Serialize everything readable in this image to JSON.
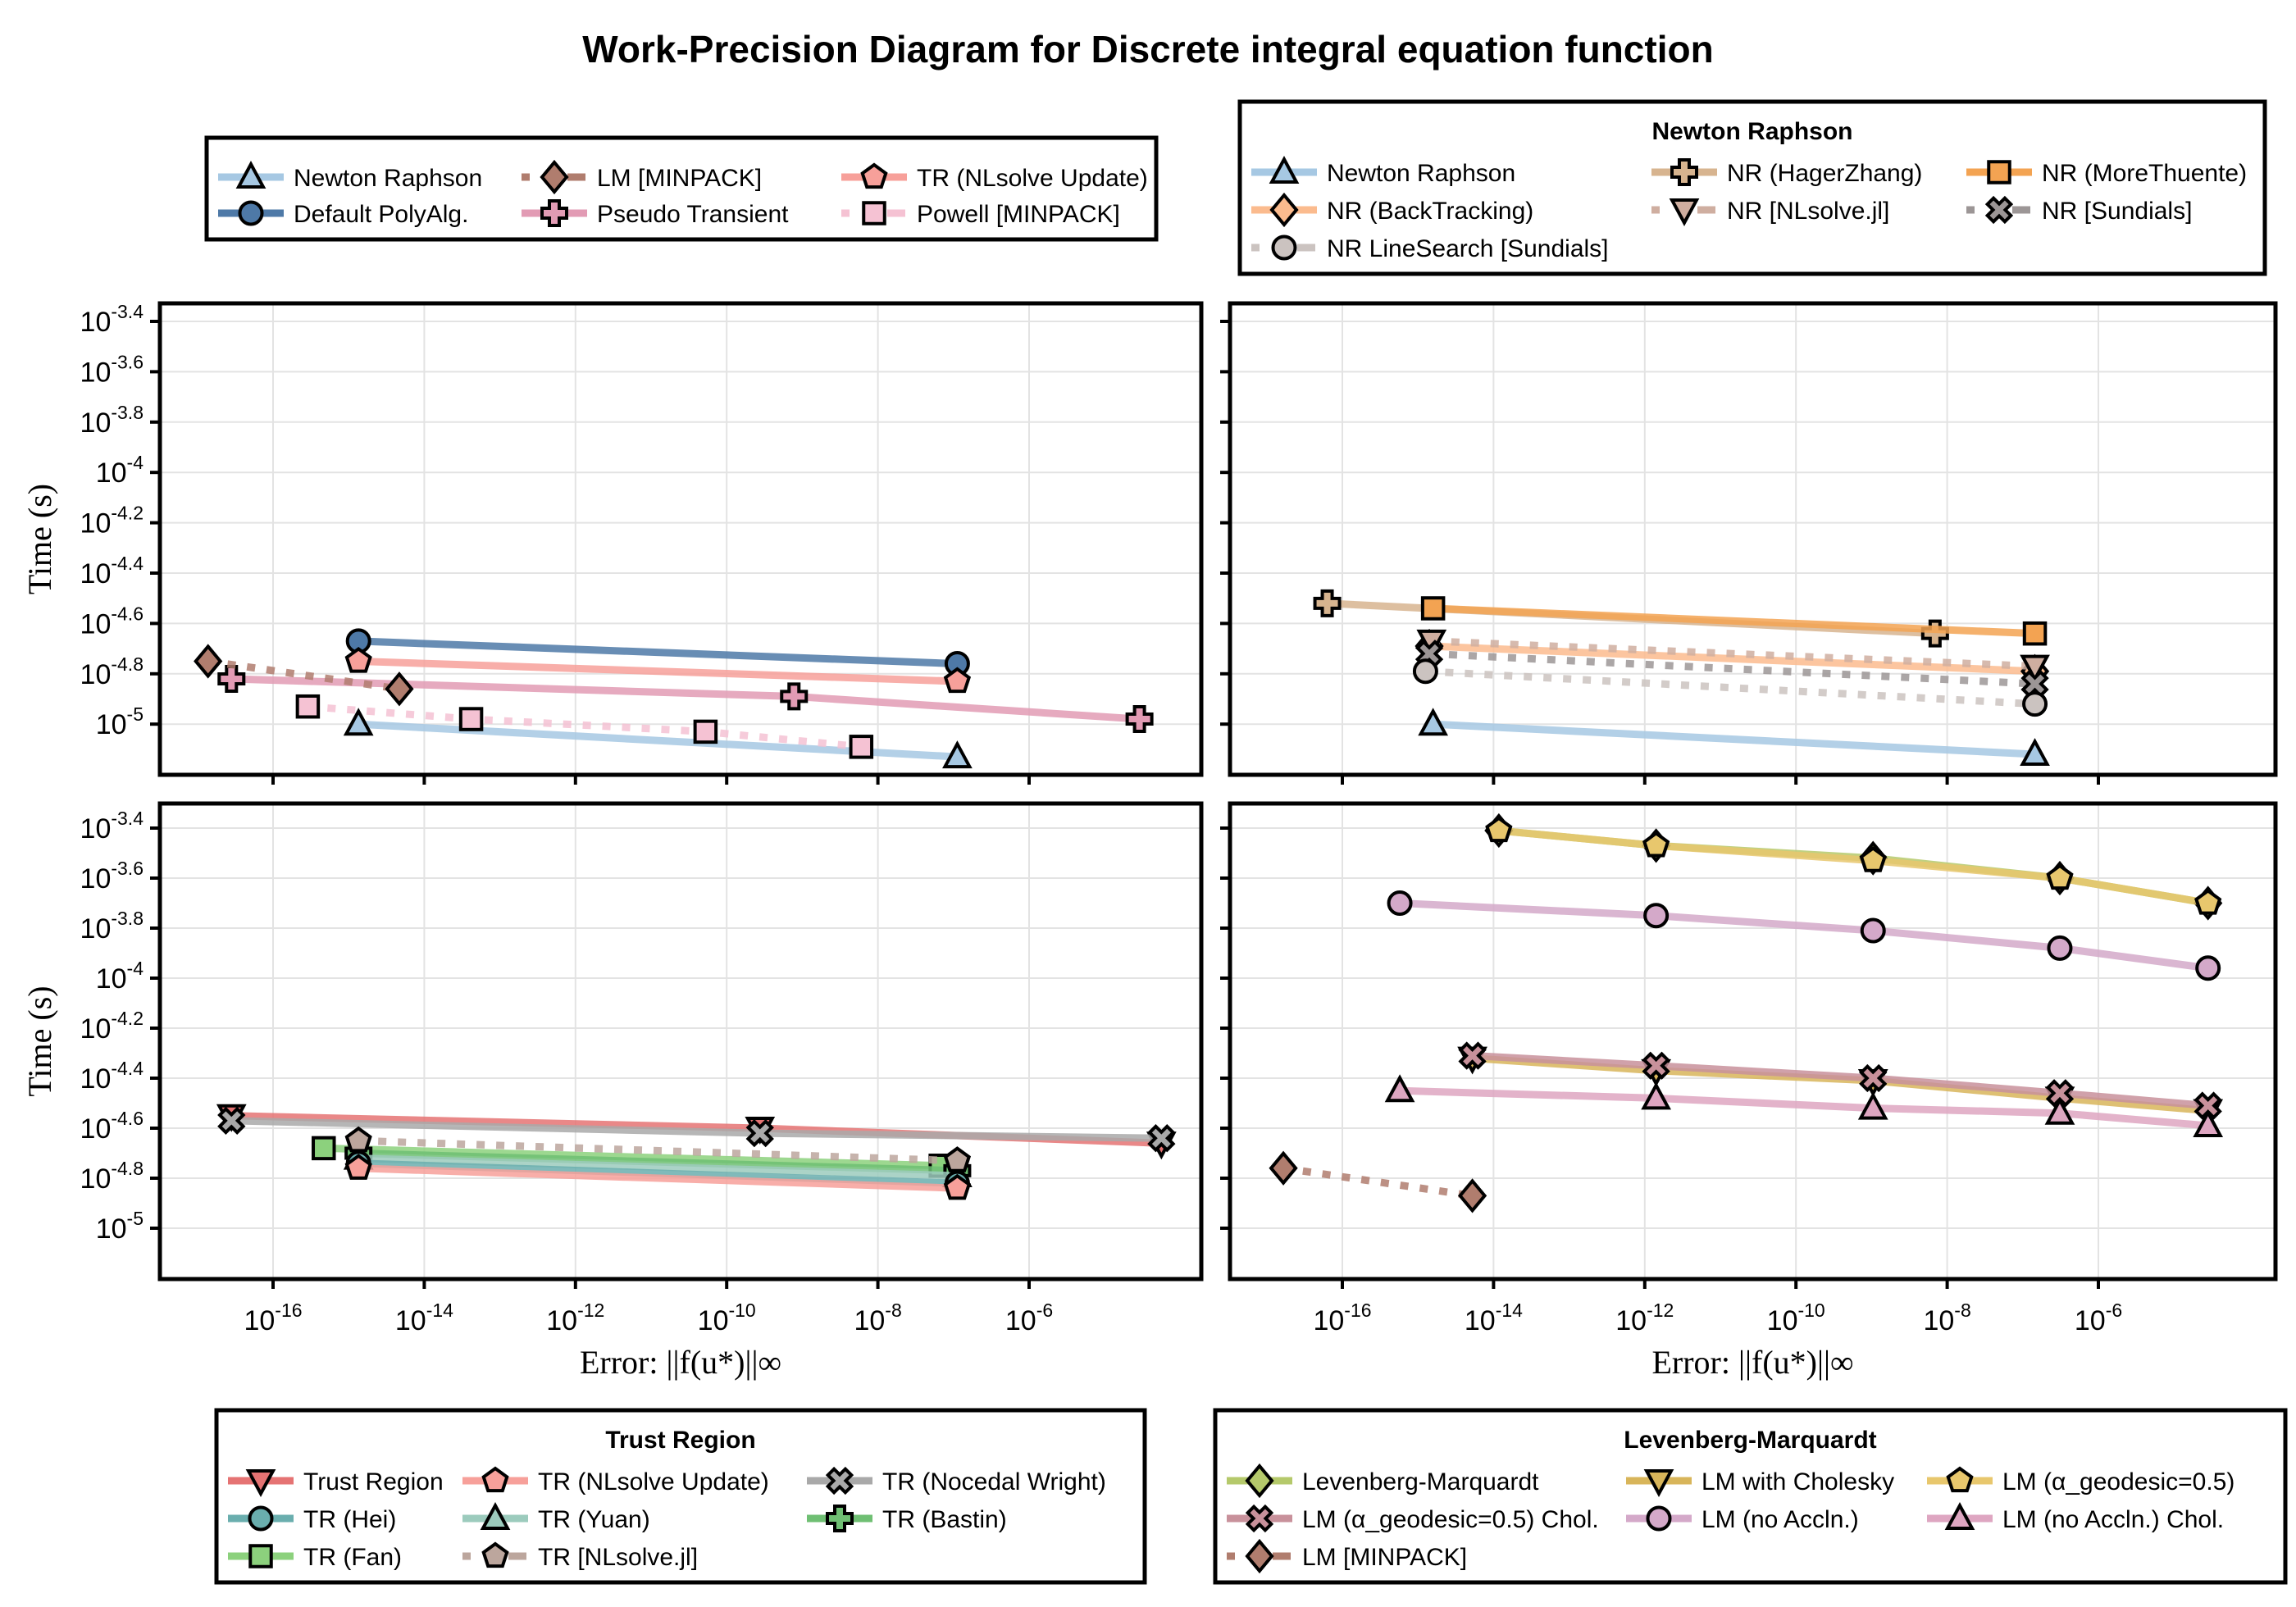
{
  "figure": {
    "title": "Work-Precision Diagram for Discrete integral equation function"
  },
  "legends": {
    "main": {
      "title": "",
      "entries": [
        {
          "label": "Newton Raphson",
          "series": "newton_raphson"
        },
        {
          "label": "Default PolyAlg.",
          "series": "default_polyalg"
        },
        {
          "label": "LM [MINPACK]",
          "series": "lm_minpack"
        },
        {
          "label": "Pseudo Transient",
          "series": "pseudo_transient"
        },
        {
          "label": "TR (NLsolve Update)",
          "series": "tr_nlsolve_update"
        },
        {
          "label": "Powell [MINPACK]",
          "series": "powell_minpack"
        }
      ]
    },
    "newton": {
      "title": "Newton Raphson",
      "entries": [
        {
          "label": "Newton Raphson",
          "series": "nr"
        },
        {
          "label": "NR (HagerZhang)",
          "series": "nr_hagerzhang"
        },
        {
          "label": "NR (MoreThuente)",
          "series": "nr_morethuente"
        },
        {
          "label": "NR (BackTracking)",
          "series": "nr_backtracking"
        },
        {
          "label": "NR [NLsolve.jl]",
          "series": "nr_nlsolve"
        },
        {
          "label": "NR [Sundials]",
          "series": "nr_sundials"
        },
        {
          "label": "NR LineSearch [Sundials]",
          "series": "nr_linesearch_sundials"
        }
      ]
    },
    "trust": {
      "title": "Trust Region",
      "entries": [
        {
          "label": "Trust Region",
          "series": "trust_region"
        },
        {
          "label": "TR (NLsolve Update)",
          "series": "tr_nlsolve_update2"
        },
        {
          "label": "TR (Nocedal Wright)",
          "series": "tr_nocedal"
        },
        {
          "label": "TR (Hei)",
          "series": "tr_hei"
        },
        {
          "label": "TR (Yuan)",
          "series": "tr_yuan"
        },
        {
          "label": "TR (Bastin)",
          "series": "tr_bastin"
        },
        {
          "label": "TR (Fan)",
          "series": "tr_fan"
        },
        {
          "label": "TR [NLsolve.jl]",
          "series": "tr_nlsolve_jl"
        }
      ]
    },
    "lm": {
      "title": "Levenberg-Marquardt",
      "entries": [
        {
          "label": "Levenberg-Marquardt",
          "series": "lm"
        },
        {
          "label": "LM with Cholesky",
          "series": "lm_chol"
        },
        {
          "label": "LM (α_geodesic=0.5)",
          "series": "lm_geo"
        },
        {
          "label": "LM (α_geodesic=0.5) Chol.",
          "series": "lm_geo_chol"
        },
        {
          "label": "LM (no Accln.)",
          "series": "lm_noacc"
        },
        {
          "label": "LM (no Accln.) Chol.",
          "series": "lm_noacc_chol"
        },
        {
          "label": "LM [MINPACK]",
          "series": "lm_minpack2"
        }
      ]
    }
  },
  "chart_data": [
    {
      "type": "line",
      "panel": "top-left",
      "title": "",
      "xlabel": "",
      "ylabel": "Time (s)",
      "xscale": "log10",
      "yscale": "log10",
      "xlim_log10": [
        -17.5,
        -2.5
      ],
      "ylim_log10": [
        -5.25,
        -3.33
      ],
      "xticks_log10": [
        -16,
        -14,
        -12,
        -10,
        -8,
        -6
      ],
      "yticks_log10": [
        -3.4,
        -3.6,
        -3.8,
        -4,
        -4.2,
        -4.4,
        -4.6,
        -4.8,
        -5
      ],
      "ytick_labels": [
        "10^-3.4",
        "10^-3.6",
        "10^-3.8",
        "10^-4",
        "10^-4.2",
        "10^-4.4",
        "10^-4.6",
        "10^-4.8",
        "10^-5"
      ],
      "show_xticklabels": false,
      "grid": true,
      "series": [
        {
          "id": "newton_raphson",
          "name": "Newton Raphson",
          "color": "#a6c8e3",
          "marker": "triangle",
          "dash": false,
          "log10_x": [
            -14.87,
            -6.95
          ],
          "log10_y": [
            -5.0,
            -5.13
          ]
        },
        {
          "id": "default_polyalg",
          "name": "Default PolyAlg.",
          "color": "#4e79a7",
          "marker": "circle",
          "dash": false,
          "log10_x": [
            -14.87,
            -6.95
          ],
          "log10_y": [
            -4.67,
            -4.76
          ]
        },
        {
          "id": "tr_nlsolve_update",
          "name": "TR (NLsolve Update)",
          "color": "#f7a09a",
          "marker": "pentagon",
          "dash": false,
          "log10_x": [
            -14.87,
            -6.95
          ],
          "log10_y": [
            -4.75,
            -4.83
          ]
        },
        {
          "id": "pseudo_transient",
          "name": "Pseudo Transient",
          "color": "#e29bb4",
          "marker": "cross",
          "dash": false,
          "log10_x": [
            -16.55,
            -9.11,
            -4.54
          ],
          "log10_y": [
            -4.82,
            -4.89,
            -4.98
          ]
        },
        {
          "id": "lm_minpack",
          "name": "LM [MINPACK]",
          "color": "#b07d6e",
          "marker": "diamond",
          "dash": true,
          "log10_x": [
            -16.86,
            -14.33
          ],
          "log10_y": [
            -4.75,
            -4.86
          ]
        },
        {
          "id": "powell_minpack",
          "name": "Powell [MINPACK]",
          "color": "#f5c2d3",
          "marker": "square",
          "dash": true,
          "log10_x": [
            -15.54,
            -13.38,
            -10.28,
            -8.22
          ],
          "log10_y": [
            -4.93,
            -4.98,
            -5.03,
            -5.09
          ]
        }
      ]
    },
    {
      "type": "line",
      "panel": "top-right",
      "title": "",
      "xlabel": "",
      "ylabel": "",
      "xscale": "log10",
      "yscale": "log10",
      "xlim_log10": [
        -17.5,
        -2.5
      ],
      "ylim_log10": [
        -5.25,
        -3.33
      ],
      "xticks_log10": [
        -16,
        -14,
        -12,
        -10,
        -8,
        -6
      ],
      "yticks_log10": [
        -3.4,
        -3.6,
        -3.8,
        -4,
        -4.2,
        -4.4,
        -4.6,
        -4.8,
        -5
      ],
      "show_xticklabels": false,
      "show_yticklabels": false,
      "grid": true,
      "series": [
        {
          "id": "nr",
          "name": "Newton Raphson",
          "color": "#a6c8e3",
          "marker": "triangle",
          "dash": false,
          "log10_x": [
            -14.8,
            -6.84
          ],
          "log10_y": [
            -5.0,
            -5.12
          ]
        },
        {
          "id": "nr_hagerzhang",
          "name": "NR (HagerZhang)",
          "color": "#d7b48f",
          "marker": "cross",
          "dash": false,
          "log10_x": [
            -16.2,
            -8.16
          ],
          "log10_y": [
            -4.52,
            -4.64
          ]
        },
        {
          "id": "nr_morethuente",
          "name": "NR (MoreThuente)",
          "color": "#f3a352",
          "marker": "square",
          "dash": false,
          "log10_x": [
            -14.8,
            -6.84
          ],
          "log10_y": [
            -4.54,
            -4.64
          ]
        },
        {
          "id": "nr_backtracking",
          "name": "NR (BackTracking)",
          "color": "#fbbb8e",
          "marker": "diamond",
          "dash": false,
          "log10_x": [
            -14.85,
            -6.84
          ],
          "log10_y": [
            -4.69,
            -4.79
          ]
        },
        {
          "id": "nr_nlsolve",
          "name": "NR [NLsolve.jl]",
          "color": "#cfaea0",
          "marker": "inverted-triangle",
          "dash": true,
          "log10_x": [
            -14.82,
            -6.84
          ],
          "log10_y": [
            -4.67,
            -4.77
          ]
        },
        {
          "id": "nr_sundials",
          "name": "NR [Sundials]",
          "color": "#9c9696",
          "marker": "x-cross",
          "dash": true,
          "log10_x": [
            -14.85,
            -6.84
          ],
          "log10_y": [
            -4.72,
            -4.84
          ]
        },
        {
          "id": "nr_linesearch_sundials",
          "name": "NR LineSearch [Sundials]",
          "color": "#cbc3c0",
          "marker": "circle",
          "dash": true,
          "log10_x": [
            -14.9,
            -6.84
          ],
          "log10_y": [
            -4.79,
            -4.92
          ]
        }
      ]
    },
    {
      "type": "line",
      "panel": "bottom-left",
      "title": "",
      "xlabel": "Error: ||f(u*)||∞",
      "ylabel": "Time (s)",
      "xscale": "log10",
      "yscale": "log10",
      "xlim_log10": [
        -17.5,
        -2.5
      ],
      "ylim_log10": [
        -5.3,
        -3.33
      ],
      "xticks_log10": [
        -16,
        -14,
        -12,
        -10,
        -8,
        -6
      ],
      "xtick_labels": [
        "10^-16",
        "10^-14",
        "10^-12",
        "10^-10",
        "10^-8",
        "10^-6"
      ],
      "yticks_log10": [
        -3.4,
        -3.6,
        -3.8,
        -4,
        -4.2,
        -4.4,
        -4.6,
        -4.8,
        -5
      ],
      "ytick_labels": [
        "10^-3.4",
        "10^-3.6",
        "10^-3.8",
        "10^-4",
        "10^-4.2",
        "10^-4.4",
        "10^-4.6",
        "10^-4.8",
        "10^-5"
      ],
      "grid": true,
      "series": [
        {
          "id": "trust_region",
          "name": "Trust Region",
          "color": "#e57373",
          "marker": "inverted-triangle",
          "dash": false,
          "log10_x": [
            -16.55,
            -9.56,
            -4.25
          ],
          "log10_y": [
            -4.55,
            -4.6,
            -4.66
          ]
        },
        {
          "id": "tr_nocedal",
          "name": "TR (Nocedal Wright)",
          "color": "#a9a9a9",
          "marker": "x-cross",
          "dash": false,
          "log10_x": [
            -16.55,
            -9.56,
            -4.25
          ],
          "log10_y": [
            -4.57,
            -4.62,
            -4.64
          ]
        },
        {
          "id": "tr_fan",
          "name": "TR (Fan)",
          "color": "#8cd17d",
          "marker": "square",
          "dash": false,
          "log10_x": [
            -15.33,
            -7.17
          ],
          "log10_y": [
            -4.68,
            -4.75
          ]
        },
        {
          "id": "tr_bastin",
          "name": "TR (Bastin)",
          "color": "#6fbf73",
          "marker": "cross",
          "dash": false,
          "log10_x": [
            -14.87,
            -6.95
          ],
          "log10_y": [
            -4.7,
            -4.77
          ]
        },
        {
          "id": "tr_yuan",
          "name": "TR (Yuan)",
          "color": "#9ccbbd",
          "marker": "triangle",
          "dash": false,
          "log10_x": [
            -14.87,
            -6.95
          ],
          "log10_y": [
            -4.72,
            -4.79
          ]
        },
        {
          "id": "tr_hei",
          "name": "TR (Hei)",
          "color": "#6aaeae",
          "marker": "circle",
          "dash": false,
          "log10_x": [
            -14.87,
            -6.95
          ],
          "log10_y": [
            -4.74,
            -4.82
          ]
        },
        {
          "id": "tr_nlsolve_update2",
          "name": "TR (NLsolve Update)",
          "color": "#f7a09a",
          "marker": "pentagon",
          "dash": false,
          "log10_x": [
            -14.87,
            -6.95
          ],
          "log10_y": [
            -4.76,
            -4.84
          ]
        },
        {
          "id": "tr_nlsolve_jl",
          "name": "TR [NLsolve.jl]",
          "color": "#bca69d",
          "marker": "pentagon",
          "dash": true,
          "log10_x": [
            -14.87,
            -6.95
          ],
          "log10_y": [
            -4.65,
            -4.73
          ]
        }
      ]
    },
    {
      "type": "line",
      "panel": "bottom-right",
      "title": "",
      "xlabel": "Error: ||f(u*)||∞",
      "ylabel": "",
      "xscale": "log10",
      "yscale": "log10",
      "xlim_log10": [
        -17.5,
        -2.5
      ],
      "ylim_log10": [
        -5.3,
        -3.33
      ],
      "xticks_log10": [
        -16,
        -14,
        -12,
        -10,
        -8,
        -6
      ],
      "xtick_labels": [
        "10^-16",
        "10^-14",
        "10^-12",
        "10^-10",
        "10^-8",
        "10^-6"
      ],
      "yticks_log10": [
        -3.4,
        -3.6,
        -3.8,
        -4,
        -4.2,
        -4.4,
        -4.6,
        -4.8,
        -5
      ],
      "show_yticklabels": false,
      "grid": true,
      "series": [
        {
          "id": "lm",
          "name": "Levenberg-Marquardt",
          "color": "#b5c96b",
          "marker": "diamond",
          "dash": false,
          "log10_x": [
            -13.93,
            -11.85,
            -8.98,
            -6.51,
            -4.55
          ],
          "log10_y": [
            -3.41,
            -3.47,
            -3.52,
            -3.6,
            -3.7
          ]
        },
        {
          "id": "lm_geo",
          "name": "LM (α_geodesic=0.5)",
          "color": "#e8c76d",
          "marker": "pentagon",
          "dash": false,
          "log10_x": [
            -13.93,
            -11.85,
            -8.98,
            -6.51,
            -4.55
          ],
          "log10_y": [
            -3.41,
            -3.47,
            -3.53,
            -3.6,
            -3.7
          ]
        },
        {
          "id": "lm_noacc",
          "name": "LM (no Accln.)",
          "color": "#d4a9c9",
          "marker": "circle",
          "dash": false,
          "log10_x": [
            -15.24,
            -11.85,
            -8.98,
            -6.51,
            -4.55
          ],
          "log10_y": [
            -3.7,
            -3.75,
            -3.81,
            -3.88,
            -3.96
          ]
        },
        {
          "id": "lm_chol",
          "name": "LM with Cholesky",
          "color": "#d8b55a",
          "marker": "inverted-triangle",
          "dash": false,
          "log10_x": [
            -14.28,
            -11.85,
            -8.98,
            -6.51,
            -4.55
          ],
          "log10_y": [
            -4.32,
            -4.37,
            -4.41,
            -4.48,
            -4.53
          ]
        },
        {
          "id": "lm_geo_chol",
          "name": "LM (α_geodesic=0.5) Chol.",
          "color": "#c8919b",
          "marker": "x-cross",
          "dash": false,
          "log10_x": [
            -14.28,
            -11.85,
            -8.98,
            -6.51,
            -4.55
          ],
          "log10_y": [
            -4.31,
            -4.35,
            -4.4,
            -4.46,
            -4.51
          ]
        },
        {
          "id": "lm_noacc_chol",
          "name": "LM (no Accln.) Chol.",
          "color": "#dea6c1",
          "marker": "triangle",
          "dash": false,
          "log10_x": [
            -15.24,
            -11.85,
            -8.98,
            -6.51,
            -4.55
          ],
          "log10_y": [
            -4.45,
            -4.48,
            -4.52,
            -4.54,
            -4.59
          ]
        },
        {
          "id": "lm_minpack2",
          "name": "LM [MINPACK]",
          "color": "#b07d6e",
          "marker": "diamond",
          "dash": true,
          "log10_x": [
            -16.78,
            -14.28
          ],
          "log10_y": [
            -4.76,
            -4.87
          ]
        }
      ]
    }
  ]
}
